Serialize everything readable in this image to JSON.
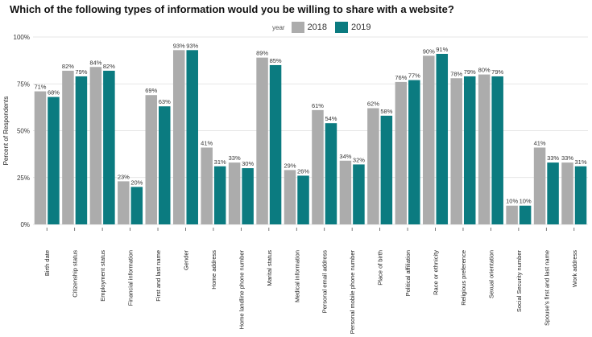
{
  "chart_data": {
    "type": "bar",
    "title": "Which of the following types of information would you be willing to share with a website?",
    "ylabel": "Percent of Respondents",
    "xlabel": "",
    "ylim": [
      0,
      1.0
    ],
    "yticks": [
      0,
      0.25,
      0.5,
      0.75,
      1.0
    ],
    "ytick_labels": [
      "0%",
      "25%",
      "50%",
      "75%",
      "100%"
    ],
    "grid": true,
    "legend": {
      "title": "year",
      "placement": "top-center"
    },
    "categories": [
      "Birth date",
      "Citizenship status",
      "Employment status",
      "Financial information",
      "First and last name",
      "Gender",
      "Home address",
      "Home landline phone number",
      "Marital status",
      "Medical information",
      "Personal email address",
      "Personal mobile phone number",
      "Place of birth",
      "Political affiliation",
      "Race or ethnicity",
      "Religious preference",
      "Sexual orientation",
      "Social Security number",
      "Spouse's first and last name",
      "Work address"
    ],
    "series": [
      {
        "name": "2018",
        "color": "#acacac",
        "values": [
          0.71,
          0.82,
          0.84,
          0.23,
          0.69,
          0.93,
          0.41,
          0.33,
          0.89,
          0.29,
          0.61,
          0.34,
          0.62,
          0.76,
          0.9,
          0.78,
          0.8,
          0.1,
          0.41,
          0.33
        ],
        "labels": [
          "71%",
          "82%",
          "84%",
          "23%",
          "69%",
          "93%",
          "41%",
          "33%",
          "89%",
          "29%",
          "61%",
          "34%",
          "62%",
          "76%",
          "90%",
          "78%",
          "80%",
          "10%",
          "41%",
          "33%"
        ]
      },
      {
        "name": "2019",
        "color": "#0b7b80",
        "values": [
          0.68,
          0.79,
          0.82,
          0.2,
          0.63,
          0.93,
          0.31,
          0.3,
          0.85,
          0.26,
          0.54,
          0.32,
          0.58,
          0.77,
          0.91,
          0.79,
          0.79,
          0.1,
          0.33,
          0.31
        ],
        "labels": [
          "68%",
          "79%",
          "82%",
          "20%",
          "63%",
          "93%",
          "31%",
          "30%",
          "85%",
          "26%",
          "54%",
          "32%",
          "58%",
          "77%",
          "91%",
          "79%",
          "79%",
          "10%",
          "33%",
          "31%"
        ]
      }
    ]
  }
}
